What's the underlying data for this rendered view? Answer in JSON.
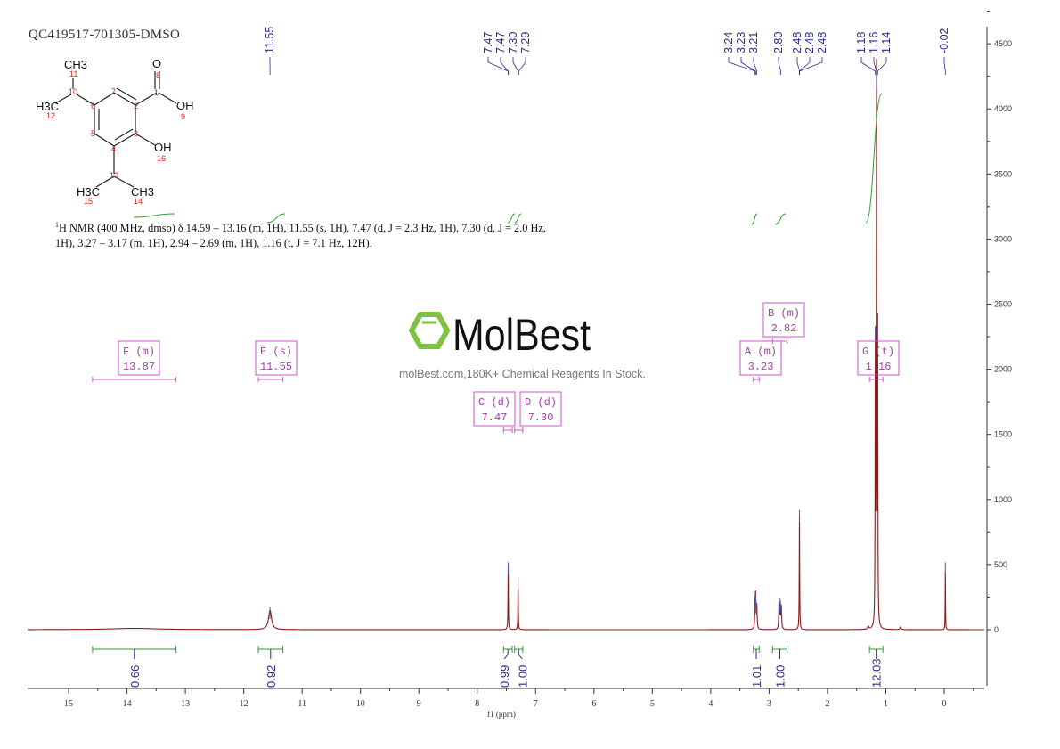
{
  "title": "QC419517-701305-DMSO",
  "description": {
    "nucleus_sup": "1",
    "text": "H NMR (400 MHz, dmso) δ 14.59 – 13.16 (m, 1H), 11.55 (s, 1H), 7.47 (d, J = 2.3 Hz, 1H), 7.30 (d, J = 2.0 Hz, 1H), 3.27 – 3.17 (m, 1H), 2.94 – 2.69 (m, 1H), 1.16 (t, J = 7.1 Hz, 12H)."
  },
  "structure": {
    "atoms": [
      {
        "label": "O",
        "num": "8"
      },
      {
        "label": "OH",
        "num": "9"
      },
      {
        "label": "OH",
        "num": "16"
      },
      {
        "label": "CH3",
        "num": "11"
      },
      {
        "label": "H3C",
        "num": "12"
      },
      {
        "label": "H3C",
        "num": "15"
      },
      {
        "label": "CH3",
        "num": "14"
      }
    ],
    "carbon_numbers": [
      "1",
      "2",
      "3",
      "4",
      "5",
      "6",
      "7",
      "10",
      "13"
    ]
  },
  "watermark": {
    "logo": "MolBest",
    "tagline": "molBest.com,180K+ Chemical Reagents In Stock.",
    "logo_color": "#7dc242"
  },
  "colors": {
    "spectrum": "#8b1a1a",
    "integral": "#2e9e2e",
    "labels": "#2a2a8a",
    "multiplet_box": "#d050d0",
    "axis": "#333333"
  },
  "chart_data": {
    "type": "line",
    "title": "",
    "xlabel": "f1 (ppm)",
    "ylabel": "",
    "xlim": [
      15.7,
      -0.7
    ],
    "ylim": [
      -500,
      4600
    ],
    "x_ticks": [
      15,
      14,
      13,
      12,
      11,
      10,
      9,
      8,
      7,
      6,
      5,
      4,
      3,
      2,
      1,
      0
    ],
    "y_ticks": [
      0,
      500,
      1000,
      1500,
      2000,
      2500,
      3000,
      3500,
      4000,
      4500
    ],
    "grid": false,
    "peaks": [
      {
        "ppm": 13.87,
        "height": 10,
        "width": 0.5
      },
      {
        "ppm": 11.55,
        "height": 150,
        "width": 0.03
      },
      {
        "ppm": 7.47,
        "height": 490,
        "width": 0.004
      },
      {
        "ppm": 7.3,
        "height": 375,
        "width": 0.004
      },
      {
        "ppm": 3.24,
        "height": 180,
        "width": 0.006
      },
      {
        "ppm": 3.23,
        "height": 240,
        "width": 0.006
      },
      {
        "ppm": 3.21,
        "height": 180,
        "width": 0.006
      },
      {
        "ppm": 2.83,
        "height": 190,
        "width": 0.006
      },
      {
        "ppm": 2.81,
        "height": 210,
        "width": 0.006
      },
      {
        "ppm": 2.79,
        "height": 170,
        "width": 0.006
      },
      {
        "ppm": 2.48,
        "height": 890,
        "width": 0.004
      },
      {
        "ppm": 1.18,
        "height": 2300,
        "width": 0.004
      },
      {
        "ppm": 1.16,
        "height": 4220,
        "width": 0.004
      },
      {
        "ppm": 1.14,
        "height": 2300,
        "width": 0.004
      },
      {
        "ppm": 1.3,
        "height": 20,
        "width": 0.01
      },
      {
        "ppm": 0.75,
        "height": 20,
        "width": 0.01
      },
      {
        "ppm": -0.02,
        "height": 490,
        "width": 0.003
      }
    ],
    "peak_labels": [
      {
        "text": "11.55"
      },
      {
        "text": "7.47"
      },
      {
        "text": "7.47"
      },
      {
        "text": "7.30"
      },
      {
        "text": "7.29"
      },
      {
        "text": "3.24"
      },
      {
        "text": "3.23"
      },
      {
        "text": "3.21"
      },
      {
        "text": "2.80"
      },
      {
        "text": "2.48"
      },
      {
        "text": "2.48"
      },
      {
        "text": "2.48"
      },
      {
        "text": "1.18"
      },
      {
        "text": "1.16"
      },
      {
        "text": "1.14"
      },
      {
        "text": "-0.02"
      }
    ],
    "multiplets": [
      {
        "name": "F (m)",
        "shift": "13.87",
        "range": [
          14.59,
          13.16
        ]
      },
      {
        "name": "E (s)",
        "shift": "11.55",
        "range": [
          11.75,
          11.33
        ]
      },
      {
        "name": "D (d)",
        "shift": "7.30",
        "range": [
          7.36,
          7.22
        ]
      },
      {
        "name": "C (d)",
        "shift": "7.47",
        "range": [
          7.55,
          7.4
        ]
      },
      {
        "name": "B (m)",
        "shift": "2.82",
        "range": [
          2.94,
          2.69
        ]
      },
      {
        "name": "A (m)",
        "shift": "3.23",
        "range": [
          3.27,
          3.17
        ]
      },
      {
        "name": "G (t)",
        "shift": "1.16",
        "range": [
          1.28,
          1.05
        ]
      }
    ],
    "integrals": [
      {
        "value": "0.66",
        "range": [
          14.59,
          13.16
        ]
      },
      {
        "value": "0.92",
        "range": [
          11.75,
          11.33
        ]
      },
      {
        "value": "0.99",
        "range": [
          7.55,
          7.4
        ]
      },
      {
        "value": "1.00",
        "range": [
          7.36,
          7.22
        ]
      },
      {
        "value": "1.01",
        "range": [
          3.27,
          3.17
        ]
      },
      {
        "value": "1.00",
        "range": [
          2.94,
          2.69
        ]
      },
      {
        "value": "12.03",
        "range": [
          1.28,
          1.05
        ]
      }
    ]
  }
}
